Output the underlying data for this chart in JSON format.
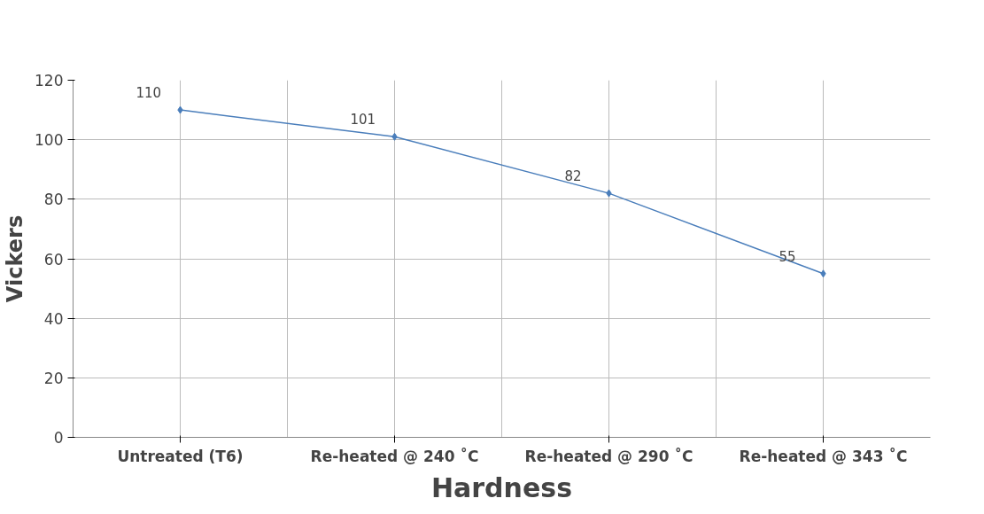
{
  "chart_data": {
    "type": "line",
    "xlabel": "Hardness",
    "ylabel": "Vickers",
    "categories": [
      "Untreated (T6)",
      "Re-heated @ 240 ˚C",
      "Re-heated @ 290 ˚C",
      "Re-heated @ 343 ˚C"
    ],
    "series": [
      {
        "color": "#4a7ebb",
        "values": [
          110,
          101,
          82,
          55
        ]
      }
    ],
    "ylim": [
      0,
      120
    ],
    "yticks": [
      0,
      20,
      40,
      60,
      80,
      100,
      120
    ],
    "grid": true,
    "marker": "diamond",
    "data_labels": true
  }
}
